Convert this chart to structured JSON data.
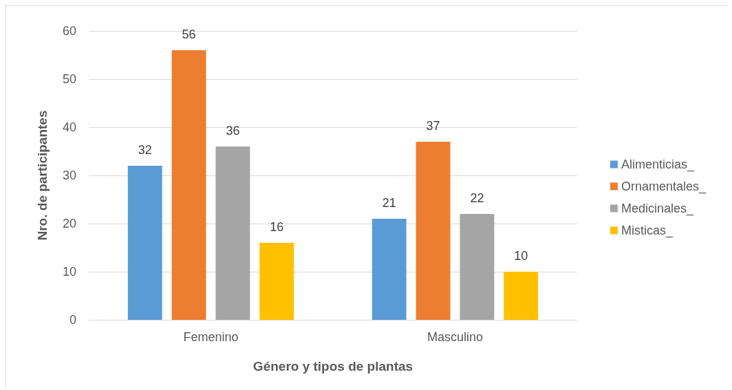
{
  "chart_data": {
    "type": "bar",
    "xlabel": "Género y tipos de plantas",
    "ylabel": "Nro. de participantes",
    "categories": [
      "Femenino",
      "Masculino"
    ],
    "series": [
      {
        "name": "Alimenticias_",
        "color": "#5b9bd5",
        "values": [
          32,
          21
        ]
      },
      {
        "name": "Ornamentales_",
        "color": "#ed7d31",
        "values": [
          56,
          37
        ]
      },
      {
        "name": "Medicinales_",
        "color": "#a5a5a5",
        "values": [
          36,
          22
        ]
      },
      {
        "name": "Misticas_",
        "color": "#ffc000",
        "values": [
          16,
          10
        ]
      }
    ],
    "ylim": [
      0,
      60
    ],
    "yticks": [
      0,
      10,
      20,
      30,
      40,
      50,
      60
    ],
    "grid": "y",
    "legend": "right",
    "data_labels": true
  }
}
